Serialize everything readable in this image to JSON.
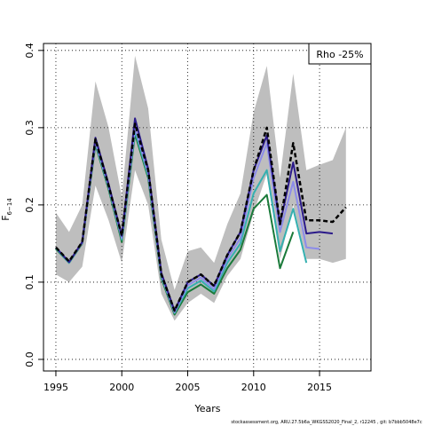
{
  "chart_data": {
    "type": "line",
    "xlabel": "Years",
    "ylabel": "F",
    "ylabel_sub": "6−14",
    "annotation": "Rho -25%",
    "footer": "stockassessment.org, ARU.27.5b6a_WKGSS2020_Final_2, r12245 , git: b7bbb5048e7c",
    "x": [
      1995,
      1996,
      1997,
      1998,
      1999,
      2000,
      2001,
      2002,
      2003,
      2004,
      2005,
      2006,
      2007,
      2008,
      2009,
      2010,
      2011,
      2012,
      2013,
      2014,
      2015,
      2016,
      2017
    ],
    "xlim": [
      1994.06,
      2018.9
    ],
    "ylim": [
      -0.015,
      0.409
    ],
    "xticks": [
      1995,
      2000,
      2005,
      2010,
      2015
    ],
    "yticks": [
      {
        "value": 0,
        "label": "0.0"
      },
      0.1,
      0.2,
      0.3,
      0.4
    ],
    "grid": true,
    "band": {
      "color": "#bebebe",
      "upper": [
        0.19,
        0.165,
        0.2,
        0.36,
        0.3,
        0.21,
        0.393,
        0.325,
        0.155,
        0.09,
        0.14,
        0.145,
        0.125,
        0.175,
        0.215,
        0.32,
        0.38,
        0.235,
        0.37,
        0.245,
        0.252,
        0.258,
        0.3
      ],
      "lower": [
        0.11,
        0.1,
        0.12,
        0.225,
        0.18,
        0.125,
        0.245,
        0.2,
        0.085,
        0.05,
        0.073,
        0.085,
        0.073,
        0.108,
        0.13,
        0.19,
        0.24,
        0.13,
        0.2,
        0.13,
        0.13,
        0.125,
        0.13
      ]
    },
    "series": [
      {
        "color": "#1a7a3a",
        "values": [
          0.143,
          0.125,
          0.15,
          0.278,
          0.22,
          0.152,
          0.292,
          0.235,
          0.105,
          0.058,
          0.087,
          0.097,
          0.085,
          0.118,
          0.142,
          0.195,
          0.213,
          0.118,
          0.165,
          null,
          null,
          null,
          null
        ]
      },
      {
        "color": "#35b0b0",
        "values": [
          0.144,
          0.125,
          0.151,
          0.28,
          0.222,
          0.155,
          0.296,
          0.238,
          0.107,
          0.06,
          0.092,
          0.102,
          0.088,
          0.125,
          0.15,
          0.215,
          0.245,
          0.14,
          0.195,
          0.125,
          null,
          null,
          null
        ]
      },
      {
        "color": "#8c8cea",
        "values": [
          0.145,
          0.126,
          0.151,
          0.282,
          0.224,
          0.157,
          0.3,
          0.241,
          0.109,
          0.061,
          0.096,
          0.106,
          0.091,
          0.13,
          0.157,
          0.235,
          0.28,
          0.165,
          0.23,
          0.145,
          0.143,
          null,
          null
        ]
      },
      {
        "color": "#2b1a8a",
        "values": [
          0.145,
          0.126,
          0.152,
          0.287,
          0.227,
          0.16,
          0.312,
          0.247,
          0.112,
          0.063,
          0.1,
          0.11,
          0.095,
          0.135,
          0.165,
          0.245,
          0.29,
          0.175,
          0.255,
          0.163,
          0.165,
          0.163,
          null
        ]
      },
      {
        "color": "#000000",
        "dashed": true,
        "values": [
          0.145,
          0.127,
          0.152,
          0.285,
          0.225,
          0.16,
          0.305,
          0.245,
          0.11,
          0.063,
          0.1,
          0.11,
          0.095,
          0.135,
          0.165,
          0.245,
          0.3,
          0.175,
          0.28,
          0.18,
          0.18,
          0.178,
          0.197
        ]
      }
    ]
  }
}
